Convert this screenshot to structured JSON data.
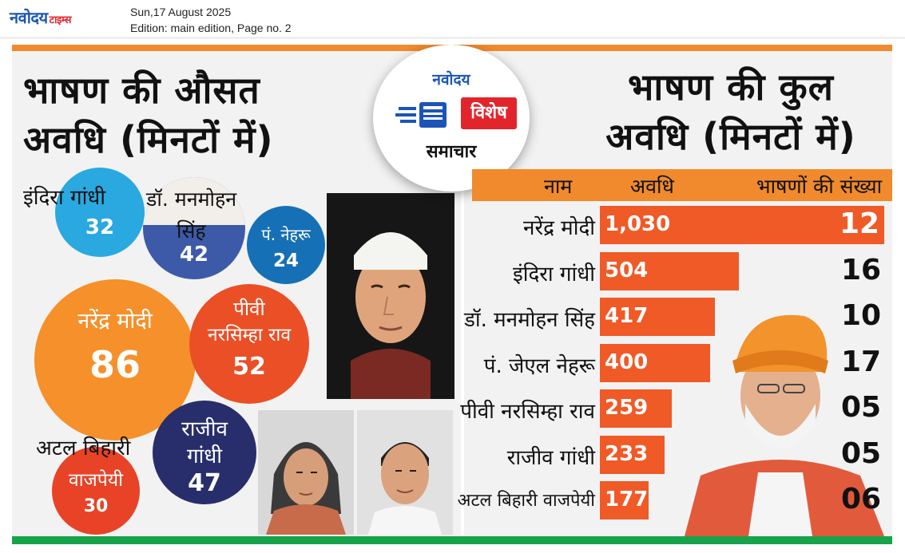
{
  "header": {
    "logo_main": "नवोदय",
    "logo_sub": "टाइम्स",
    "date": "Sun,17 August 2025",
    "edition": "Edition: main edition, Page no. 2"
  },
  "left_panel": {
    "title_line1": "भाषण की औसत",
    "title_line2": "अवधि (मिनटों में)",
    "bubbles": [
      {
        "name": "इंदिरा गांधी",
        "value": "32",
        "color": "#2aa8e0"
      },
      {
        "name": "डॉ. मनमोहन",
        "name2": "सिंह",
        "value": "42",
        "color": "#3d5aa8"
      },
      {
        "name": "पं. नेहरू",
        "value": "24",
        "color": "#1670b5"
      },
      {
        "name": "नरेंद्र मोदी",
        "value": "86",
        "color": "#f5902a"
      },
      {
        "name": "पीवी",
        "name2": "नरसिम्हा राव",
        "value": "52",
        "color": "#ea4f26"
      },
      {
        "name": "अटल बिहारी",
        "name2": "वाजपेयी",
        "value": "30",
        "color": "#e84327"
      },
      {
        "name": "राजीव",
        "name2": "गांधी",
        "value": "47",
        "color": "#272e6b"
      }
    ]
  },
  "badge": {
    "top": "नवोदय",
    "mid": "विशेष",
    "bottom": "समाचार"
  },
  "right_panel": {
    "title_line1": "भाषण की कुल",
    "title_line2": "अवधि (मिनटों में)",
    "col_name": "नाम",
    "col_duration": "अवधि",
    "col_count": "भाषणों की संख्या",
    "rows": [
      {
        "name": "नरेंद्र मोदी",
        "duration": "1,030",
        "duration_num": 1030,
        "count": "12"
      },
      {
        "name": "इंदिरा गांधी",
        "duration": "504",
        "duration_num": 504,
        "count": "16"
      },
      {
        "name": "डॉ. मनमोहन सिंह",
        "duration": "417",
        "duration_num": 417,
        "count": "10"
      },
      {
        "name": "पं. जेएल नेहरू",
        "duration": "400",
        "duration_num": 400,
        "count": "17"
      },
      {
        "name": "पीवी नरसिम्हा राव",
        "duration": "259",
        "duration_num": 259,
        "count": "05"
      },
      {
        "name": "राजीव गांधी",
        "duration": "233",
        "duration_num": 233,
        "count": "05"
      },
      {
        "name": "अटल बिहारी वाजपेयी",
        "duration": "177",
        "duration_num": 177,
        "count": "06"
      }
    ]
  },
  "colors": {
    "accent_orange": "#f08a2c",
    "bar_orange": "#ef5a27",
    "accent_green": "#17a34a",
    "brand_blue": "#1b55b8",
    "brand_red": "#e2252b"
  }
}
